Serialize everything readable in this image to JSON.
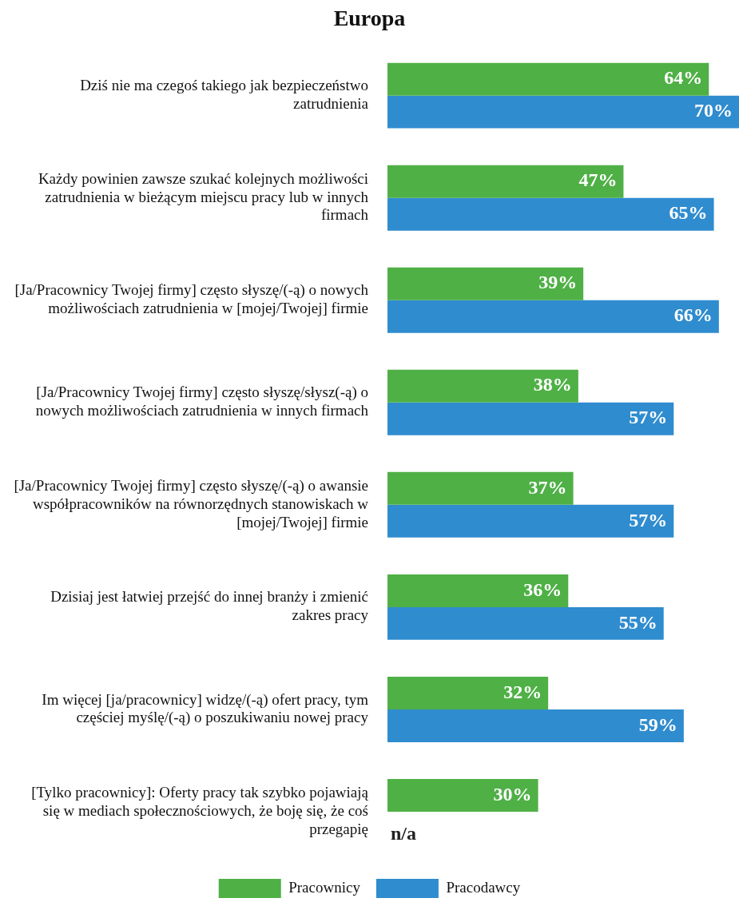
{
  "chart_data": {
    "type": "bar",
    "orientation": "horizontal",
    "title": "Europa",
    "categories": [
      "Dziś nie ma czegoś takiego jak bezpieczeństwo zatrudnienia",
      "Każdy powinien zawsze szukać kolejnych możliwości zatrudnienia w bieżącym miejscu pracy lub w innych firmach",
      "[Ja/Pracownicy Twojej firmy] często słyszę/(-ą) o nowych możliwościach zatrudnienia w [mojej/Twojej] firmie",
      "[Ja/Pracownicy Twojej firmy] często słyszę/słysz(-ą) o nowych możliwościach zatrudnienia w innych firmach",
      "[Ja/Pracownicy Twojej firmy] często słyszę/(-ą) o awansie współpracowników na równorzędnych stanowiskach w [mojej/Twojej] firmie",
      "Dzisiaj jest łatwiej przejść do innej branży i zmienić zakres pracy",
      "Im więcej [ja/pracownicy] widzę/(-ą) ofert pracy, tym częściej myślę/(-ą) o poszukiwaniu nowej pracy",
      "[Tylko pracownicy]: Oferty pracy tak szybko pojawiają się w mediach społecznościowych, że boję się, że coś przegapię"
    ],
    "series": [
      {
        "name": "Pracownicy",
        "color": "#4fb046",
        "values": [
          64,
          47,
          39,
          38,
          37,
          36,
          32,
          30
        ],
        "value_labels": [
          "64%",
          "47%",
          "39%",
          "38%",
          "37%",
          "36%",
          "32%",
          "30%"
        ]
      },
      {
        "name": "Pracodawcy",
        "color": "#2f8ccf",
        "values": [
          70,
          65,
          66,
          57,
          57,
          55,
          59,
          null
        ],
        "value_labels": [
          "70%",
          "65%",
          "66%",
          "57%",
          "57%",
          "55%",
          "59%",
          "n/a"
        ]
      }
    ],
    "legend": "bottom"
  }
}
